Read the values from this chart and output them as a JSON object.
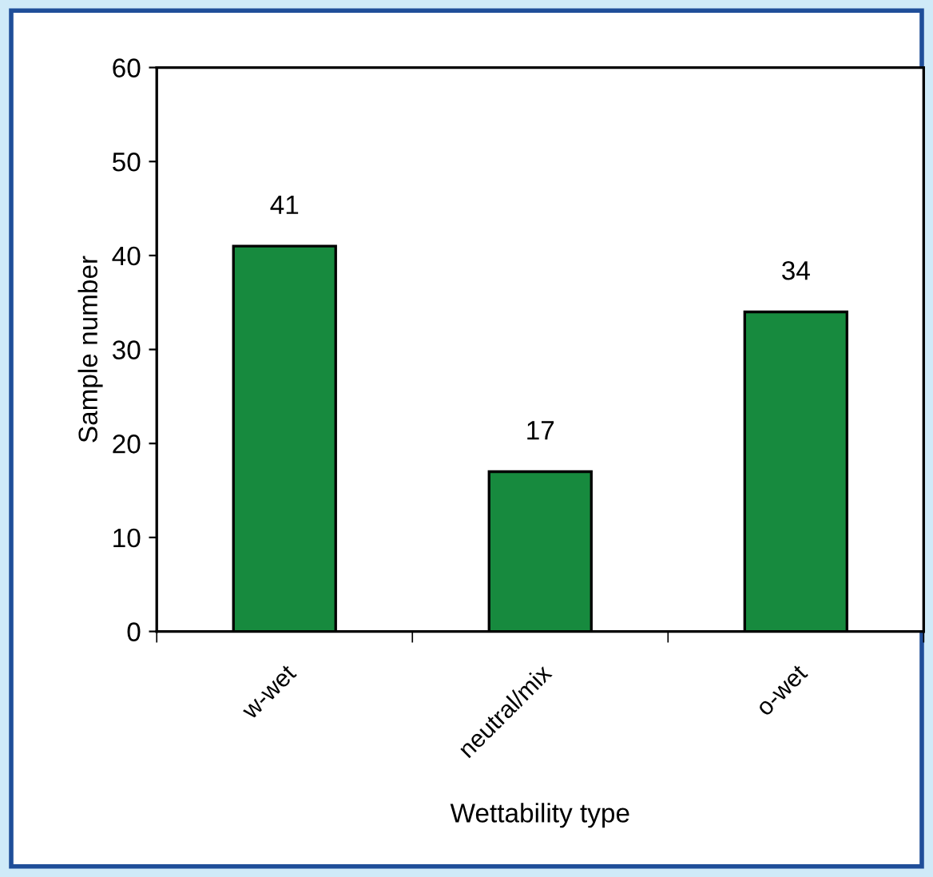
{
  "chart_data": {
    "type": "bar",
    "categories": [
      "w-wet",
      "neutral/mix",
      "o-wet"
    ],
    "values": [
      41,
      17,
      34
    ],
    "color": "#178a3e",
    "data_labels": true,
    "xlabel": "Wettability type",
    "ylabel": "Sample number",
    "ylim": [
      0,
      60
    ],
    "yticks": [
      0,
      10,
      20,
      30,
      40,
      50,
      60
    ],
    "grid": false,
    "legend": false
  }
}
